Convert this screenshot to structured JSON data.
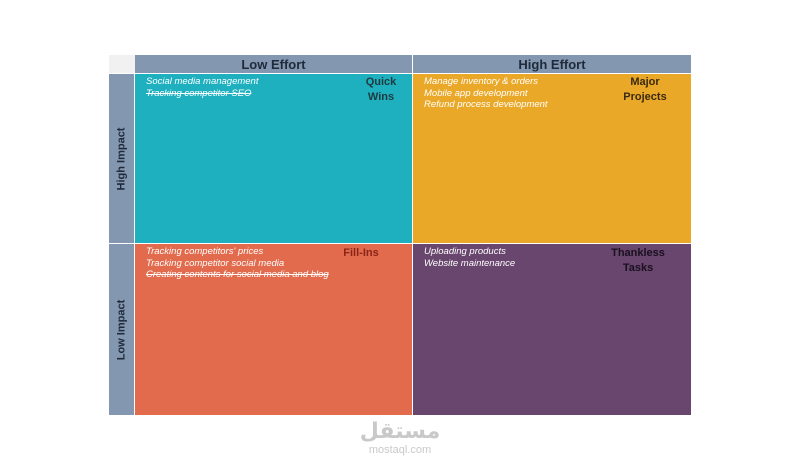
{
  "columns": {
    "low_effort": "Low Effort",
    "high_effort": "High Effort"
  },
  "rows": {
    "high_impact": "High Impact",
    "low_impact": "Low Impact"
  },
  "quadrants": {
    "quick_wins": {
      "title_line1": "Quick",
      "title_line2": "Wins",
      "color": "#1eb0bf",
      "tasks": [
        {
          "text": "Social media management",
          "done": false
        },
        {
          "text": "Tracking competitor SEO",
          "done": true
        }
      ]
    },
    "major_projects": {
      "title_line1": "Major",
      "title_line2": "Projects",
      "color": "#eaa828",
      "tasks": [
        {
          "text": "Manage inventory & orders",
          "done": false
        },
        {
          "text": "Mobile app development",
          "done": false
        },
        {
          "text": "Refund process development",
          "done": false
        }
      ]
    },
    "fill_ins": {
      "title_line1": "Fill-Ins",
      "color": "#e26b4d",
      "tasks": [
        {
          "text": "Tracking competitors' prices",
          "done": false
        },
        {
          "text": "Tracking competitor social media",
          "done": false
        },
        {
          "text": "Creating contents for social media and blog",
          "done": true
        }
      ]
    },
    "thankless_tasks": {
      "title_line1": "Thankless",
      "title_line2": "Tasks",
      "color": "#68466d",
      "tasks": [
        {
          "text": "Uploading products",
          "done": false
        },
        {
          "text": "Website maintenance",
          "done": false
        }
      ]
    }
  },
  "watermark": {
    "logo_text": "مستقل",
    "url": "mostaql.com"
  }
}
